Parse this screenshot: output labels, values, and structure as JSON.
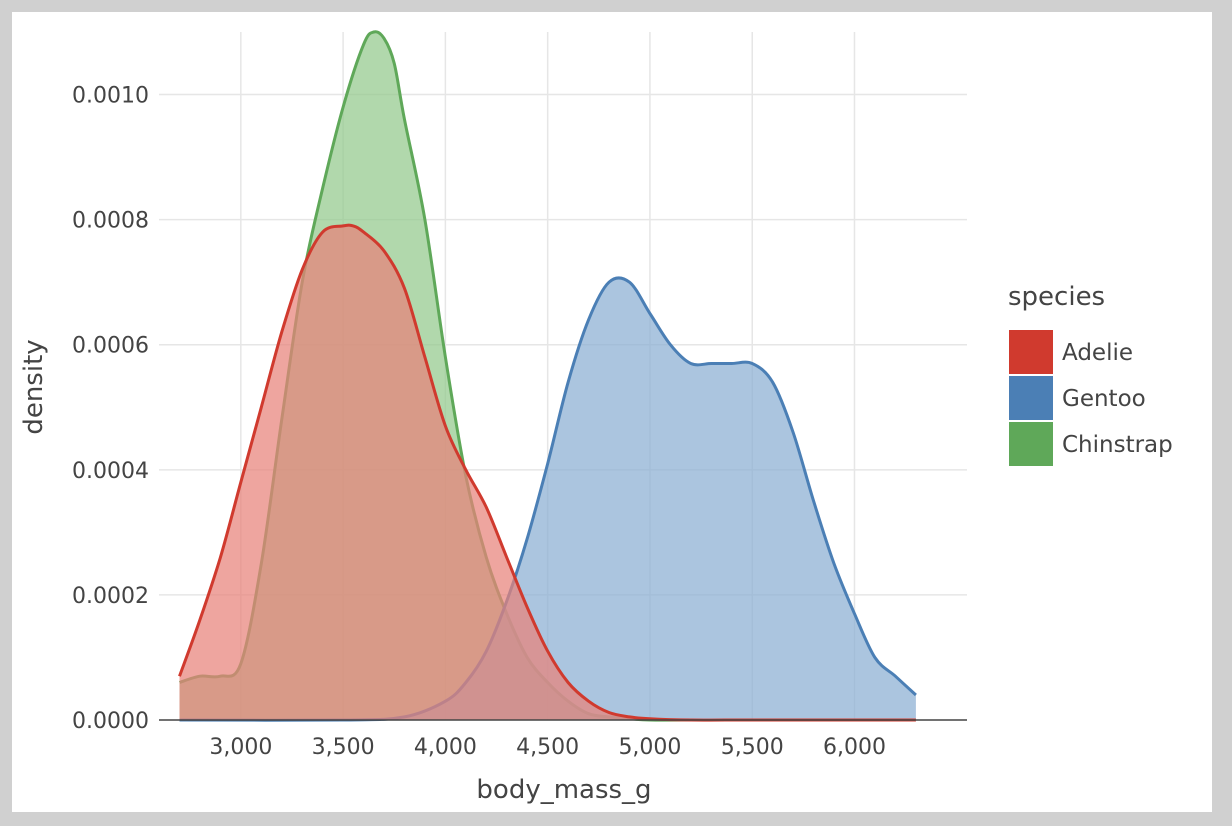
{
  "chart_data": {
    "type": "area",
    "title": "",
    "xlabel": "body_mass_g",
    "ylabel": "density",
    "xlim": [
      2600,
      6550
    ],
    "ylim": [
      0,
      0.0011
    ],
    "x_ticks": [
      3000,
      3500,
      4000,
      4500,
      5000,
      5500,
      6000
    ],
    "x_tick_labels": [
      "3,000",
      "3,500",
      "4,000",
      "4,500",
      "5,000",
      "5,500",
      "6,000"
    ],
    "y_ticks": [
      0,
      0.0002,
      0.0004,
      0.0006,
      0.0008,
      0.001
    ],
    "y_tick_labels": [
      "0.0000",
      "0.0002",
      "0.0004",
      "0.0006",
      "0.0008",
      "0.0010"
    ],
    "grid": true,
    "legend": {
      "title": "species",
      "placement": "right",
      "entries": [
        "Adelie",
        "Gentoo",
        "Chinstrap"
      ]
    },
    "series": [
      {
        "name": "Adelie",
        "color": "#d03a2e",
        "fill": "#e8827a",
        "x": [
          2700,
          2800,
          2900,
          3000,
          3100,
          3200,
          3300,
          3400,
          3500,
          3550,
          3600,
          3700,
          3800,
          3900,
          4000,
          4100,
          4200,
          4300,
          4400,
          4500,
          4600,
          4700,
          4800,
          4900,
          5000,
          5200,
          5500,
          6000,
          6300
        ],
        "y": [
          7e-05,
          0.00016,
          0.00026,
          0.00038,
          0.0005,
          0.00062,
          0.00072,
          0.00078,
          0.00079,
          0.00079,
          0.00078,
          0.00075,
          0.00069,
          0.00058,
          0.00047,
          0.0004,
          0.00034,
          0.00026,
          0.00018,
          0.00011,
          6e-05,
          3e-05,
          1.2e-05,
          5e-06,
          2e-06,
          0,
          0,
          0,
          0
        ]
      },
      {
        "name": "Gentoo",
        "color": "#4b7fb5",
        "fill": "#8aaed3",
        "x": [
          2700,
          3500,
          3800,
          4000,
          4100,
          4200,
          4300,
          4400,
          4500,
          4600,
          4700,
          4800,
          4900,
          5000,
          5100,
          5200,
          5300,
          5400,
          5500,
          5600,
          5700,
          5800,
          5900,
          6000,
          6100,
          6200,
          6300
        ],
        "y": [
          0,
          0,
          5e-06,
          3e-05,
          6e-05,
          0.00011,
          0.00019,
          0.00029,
          0.00041,
          0.00054,
          0.00064,
          0.0007,
          0.0007,
          0.00065,
          0.0006,
          0.00057,
          0.00057,
          0.00057,
          0.00057,
          0.00054,
          0.00046,
          0.00035,
          0.00025,
          0.00017,
          0.0001,
          7e-05,
          4e-05
        ]
      },
      {
        "name": "Chinstrap",
        "color": "#5fa859",
        "fill": "#93c98c",
        "x": [
          2700,
          2800,
          2900,
          3000,
          3100,
          3200,
          3300,
          3400,
          3500,
          3600,
          3650,
          3700,
          3750,
          3800,
          3900,
          4000,
          4100,
          4200,
          4300,
          4400,
          4500,
          4600,
          4700,
          4800,
          4900,
          5000,
          5200
        ],
        "y": [
          6e-05,
          7e-05,
          7e-05,
          9e-05,
          0.00025,
          0.00048,
          0.0007,
          0.00085,
          0.00098,
          0.00108,
          0.0011,
          0.00109,
          0.00105,
          0.00096,
          0.0008,
          0.00058,
          0.00039,
          0.00026,
          0.00017,
          0.0001,
          6e-05,
          3e-05,
          1e-05,
          5e-06,
          2e-06,
          0,
          0
        ]
      }
    ]
  }
}
